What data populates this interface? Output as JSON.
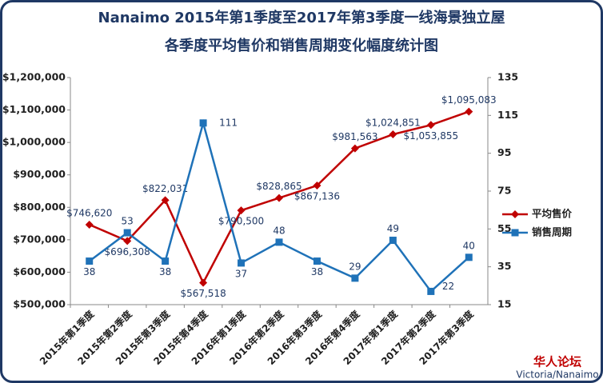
{
  "chart_data": {
    "type": "line",
    "title": [
      "Nanaimo 2015年第1季度至2017年第3季度一线海景独立屋",
      "各季度平均售价和销售周期变化幅度统计图"
    ],
    "categories": [
      "2015年第1季度",
      "2015年第2季度",
      "2015年第3季度",
      "2015年第4季度",
      "2016年第1季度",
      "2016年第2季度",
      "2016年第3季度",
      "2016年第4季度",
      "2017年第1季度",
      "2017年第2季度",
      "2017年第3季度"
    ],
    "series": [
      {
        "name": "平均售价",
        "color": "#c00000",
        "marker": "diamond",
        "axis": "y",
        "values": [
          746620,
          696308,
          822031,
          567518,
          790500,
          828865,
          867136,
          981563,
          1024851,
          1053855,
          1095083
        ],
        "value_labels": [
          "$746,620",
          "$696,308",
          "$822,031",
          "$567,518",
          "$790,500",
          "$828,865",
          "$867,136",
          "$981,563",
          "$1,024,851",
          "$1,053,855",
          "$1,095,083"
        ]
      },
      {
        "name": "销售周期",
        "color": "#1f72b8",
        "marker": "square",
        "axis": "y2",
        "values": [
          38,
          53,
          38,
          111,
          37,
          48,
          38,
          29,
          49,
          22,
          40
        ]
      }
    ],
    "ylim": [
      500000,
      1200000
    ],
    "yticks": [
      {
        "value": 500000,
        "label": "$500,000"
      },
      {
        "value": 600000,
        "label": "$600,000"
      },
      {
        "value": 700000,
        "label": "$700,000"
      },
      {
        "value": 800000,
        "label": "$800,000"
      },
      {
        "value": 900000,
        "label": "$900,000"
      },
      {
        "value": 1000000,
        "label": "$1,000,000"
      },
      {
        "value": 1100000,
        "label": "$1,100,000"
      },
      {
        "value": 1200000,
        "label": "$1,200,000"
      }
    ],
    "y2lim": [
      15,
      135
    ],
    "y2ticks": [
      15,
      35,
      55,
      75,
      95,
      115,
      135
    ],
    "legend": "right",
    "footer": [
      "华人论坛",
      "Victoria/Nanaimo"
    ]
  }
}
